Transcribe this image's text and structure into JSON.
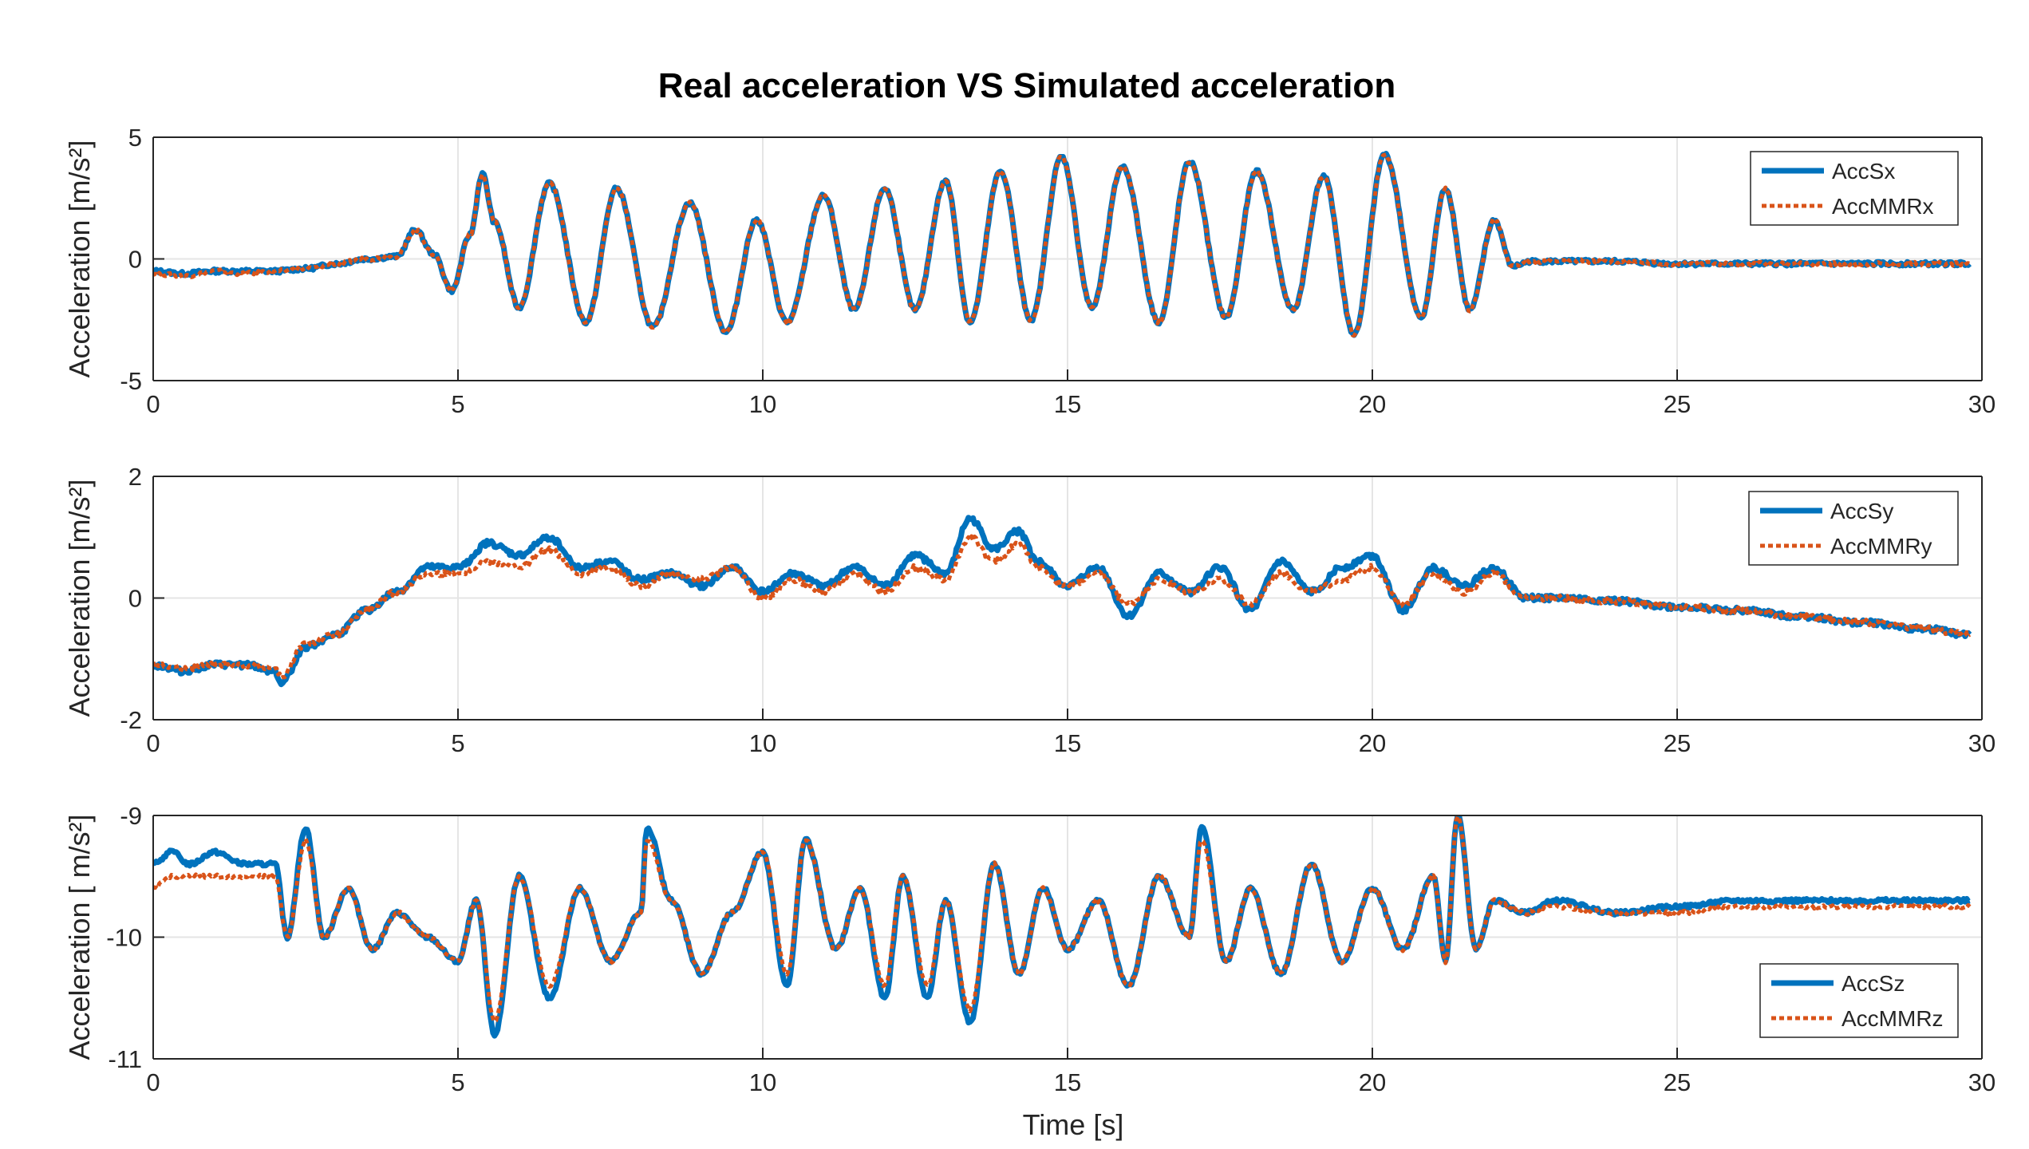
{
  "title": "Real acceleration VS Simulated acceleration",
  "xlabel": "Time [s]",
  "colors": {
    "measured": "#0072BD",
    "simulated": "#D95319",
    "grid": "#e5e5e5",
    "axis": "#262626"
  },
  "chart_data": [
    {
      "type": "line",
      "ylabel": "Acceleration [m/s²]",
      "xlim": [
        0,
        30
      ],
      "ylim": [
        -5,
        5
      ],
      "xticks": [
        0,
        5,
        10,
        15,
        20,
        25,
        30
      ],
      "yticks": [
        -5,
        0,
        5
      ],
      "legend_position": "top-right",
      "series": [
        {
          "name": "AccSx",
          "style": "solid",
          "x": [
            0,
            0.5,
            1,
            1.5,
            2,
            2.5,
            3,
            3.5,
            4,
            4.3,
            4.6,
            4.9,
            5.2,
            5.4,
            5.6,
            6.0,
            6.5,
            7.1,
            7.6,
            8.2,
            8.8,
            9.4,
            9.9,
            10.4,
            11.0,
            11.5,
            12.0,
            12.5,
            13.0,
            13.4,
            13.9,
            14.4,
            14.9,
            15.4,
            15.9,
            16.5,
            17.0,
            17.6,
            18.1,
            18.7,
            19.2,
            19.7,
            20.2,
            20.8,
            21.2,
            21.6,
            22.0,
            22.3,
            22.6,
            23,
            24,
            25,
            26,
            27,
            28,
            29,
            29.8
          ],
          "y": [
            -0.5,
            -0.6,
            -0.5,
            -0.5,
            -0.5,
            -0.4,
            -0.2,
            0.0,
            0.1,
            1.2,
            0.2,
            -1.3,
            1.0,
            3.5,
            1.5,
            -2.0,
            3.1,
            -2.6,
            2.9,
            -2.8,
            2.3,
            -3.0,
            1.6,
            -2.6,
            2.6,
            -2.1,
            2.9,
            -2.1,
            3.2,
            -2.6,
            3.6,
            -2.5,
            4.2,
            -2.0,
            3.8,
            -2.6,
            4.0,
            -2.4,
            3.6,
            -2.1,
            3.4,
            -3.1,
            4.3,
            -2.4,
            2.9,
            -2.1,
            1.6,
            -0.3,
            -0.1,
            -0.1,
            -0.1,
            -0.2,
            -0.2,
            -0.2,
            -0.2,
            -0.2,
            -0.2
          ]
        },
        {
          "name": "AccMMRx",
          "style": "dotted",
          "x": [
            0,
            0.5,
            1,
            1.5,
            2,
            2.5,
            3,
            3.5,
            4,
            4.3,
            4.6,
            4.9,
            5.2,
            5.4,
            5.6,
            6.0,
            6.5,
            7.1,
            7.6,
            8.2,
            8.8,
            9.4,
            9.9,
            10.4,
            11.0,
            11.5,
            12.0,
            12.5,
            13.0,
            13.4,
            13.9,
            14.4,
            14.9,
            15.4,
            15.9,
            16.5,
            17.0,
            17.6,
            18.1,
            18.7,
            19.2,
            19.7,
            20.2,
            20.8,
            21.2,
            21.6,
            22.0,
            22.3,
            22.6,
            23,
            24,
            25,
            26,
            27,
            28,
            29,
            29.8
          ],
          "y": [
            -0.6,
            -0.7,
            -0.5,
            -0.6,
            -0.5,
            -0.4,
            -0.2,
            0.0,
            0.1,
            1.2,
            0.2,
            -1.3,
            1.0,
            3.5,
            1.5,
            -2.0,
            3.1,
            -2.6,
            2.9,
            -2.8,
            2.3,
            -3.0,
            1.6,
            -2.6,
            2.6,
            -2.1,
            2.9,
            -2.1,
            3.2,
            -2.6,
            3.6,
            -2.5,
            4.2,
            -2.0,
            3.8,
            -2.6,
            4.0,
            -2.4,
            3.6,
            -2.1,
            3.4,
            -3.1,
            4.3,
            -2.4,
            2.9,
            -2.1,
            1.6,
            -0.3,
            -0.1,
            -0.1,
            -0.1,
            -0.2,
            -0.2,
            -0.2,
            -0.2,
            -0.2,
            -0.2
          ]
        }
      ]
    },
    {
      "type": "line",
      "ylabel": "Acceleration [m/s²]",
      "xlim": [
        0,
        30
      ],
      "ylim": [
        -2,
        2
      ],
      "xticks": [
        0,
        5,
        10,
        15,
        20,
        25,
        30
      ],
      "yticks": [
        -2,
        0,
        2
      ],
      "legend_position": "top-right",
      "series": [
        {
          "name": "AccSy",
          "style": "solid",
          "x": [
            0,
            0.5,
            1,
            1.5,
            2,
            2.1,
            2.5,
            3,
            3.5,
            4,
            4.5,
            5,
            5.5,
            6,
            6.5,
            7,
            7.5,
            8,
            8.5,
            9,
            9.5,
            10,
            10.5,
            11,
            11.5,
            12,
            12.5,
            13,
            13.4,
            13.8,
            14.2,
            14.5,
            15,
            15.5,
            16,
            16.5,
            17,
            17.5,
            18,
            18.5,
            19,
            19.5,
            20,
            20.5,
            21,
            21.5,
            22,
            22.5,
            23,
            24,
            25,
            26,
            27,
            28,
            29,
            29.8
          ],
          "y": [
            -1.1,
            -1.2,
            -1.1,
            -1.1,
            -1.2,
            -1.4,
            -0.8,
            -0.6,
            -0.2,
            0.1,
            0.5,
            0.5,
            0.9,
            0.7,
            1.0,
            0.5,
            0.6,
            0.3,
            0.4,
            0.2,
            0.5,
            0.1,
            0.4,
            0.2,
            0.5,
            0.2,
            0.7,
            0.4,
            1.3,
            0.8,
            1.1,
            0.6,
            0.2,
            0.5,
            -0.3,
            0.4,
            0.1,
            0.5,
            -0.2,
            0.6,
            0.1,
            0.5,
            0.7,
            -0.2,
            0.5,
            0.2,
            0.5,
            0.0,
            0.0,
            -0.05,
            -0.15,
            -0.2,
            -0.3,
            -0.4,
            -0.5,
            -0.6
          ]
        },
        {
          "name": "AccMMRy",
          "style": "dotted",
          "x": [
            0,
            0.5,
            1,
            1.5,
            2,
            2.1,
            2.5,
            3,
            3.5,
            4,
            4.5,
            5,
            5.5,
            6,
            6.5,
            7,
            7.5,
            8,
            8.5,
            9,
            9.5,
            10,
            10.5,
            11,
            11.5,
            12,
            12.5,
            13,
            13.4,
            13.8,
            14.2,
            14.5,
            15,
            15.5,
            16,
            16.5,
            17,
            17.5,
            18,
            18.5,
            19,
            19.5,
            20,
            20.5,
            21,
            21.5,
            22,
            22.5,
            23,
            24,
            25,
            26,
            27,
            28,
            29,
            29.8
          ],
          "y": [
            -1.1,
            -1.15,
            -1.1,
            -1.1,
            -1.15,
            -1.3,
            -0.75,
            -0.6,
            -0.2,
            0.1,
            0.4,
            0.4,
            0.6,
            0.5,
            0.8,
            0.4,
            0.5,
            0.2,
            0.4,
            0.3,
            0.5,
            0.0,
            0.3,
            0.1,
            0.4,
            0.1,
            0.5,
            0.3,
            1.0,
            0.6,
            0.9,
            0.5,
            0.2,
            0.4,
            -0.1,
            0.3,
            0.1,
            0.3,
            -0.1,
            0.4,
            0.1,
            0.3,
            0.5,
            -0.1,
            0.4,
            0.1,
            0.4,
            0.0,
            0.0,
            -0.05,
            -0.15,
            -0.2,
            -0.3,
            -0.4,
            -0.5,
            -0.6
          ]
        }
      ]
    },
    {
      "type": "line",
      "ylabel": "Acceleration [ m/s²]",
      "xlim": [
        0,
        30
      ],
      "ylim": [
        -11,
        -9
      ],
      "xticks": [
        0,
        5,
        10,
        15,
        20,
        25,
        30
      ],
      "yticks": [
        -11,
        -10,
        -9
      ],
      "legend_position": "bottom-right",
      "series": [
        {
          "name": "AccSz",
          "style": "solid",
          "x": [
            0,
            0.3,
            0.6,
            1,
            1.5,
            2,
            2.2,
            2.5,
            2.8,
            3.2,
            3.6,
            4,
            4.5,
            5,
            5.3,
            5.6,
            6,
            6.5,
            7,
            7.5,
            8,
            8.1,
            8.5,
            9,
            9.5,
            10,
            10.4,
            10.7,
            11.2,
            11.6,
            12,
            12.3,
            12.7,
            13,
            13.4,
            13.8,
            14.2,
            14.6,
            15,
            15.5,
            16,
            16.5,
            17,
            17.2,
            17.6,
            18,
            18.5,
            19,
            19.5,
            20,
            20.5,
            21,
            21.2,
            21.4,
            21.7,
            22,
            22.5,
            23,
            24,
            25,
            26,
            27,
            28,
            29,
            29.8
          ],
          "y": [
            -9.4,
            -9.3,
            -9.4,
            -9.3,
            -9.4,
            -9.4,
            -10.0,
            -9.1,
            -10.0,
            -9.6,
            -10.1,
            -9.8,
            -10.0,
            -10.2,
            -9.7,
            -10.8,
            -9.5,
            -10.5,
            -9.6,
            -10.2,
            -9.8,
            -9.1,
            -9.7,
            -10.3,
            -9.8,
            -9.3,
            -10.4,
            -9.2,
            -10.1,
            -9.6,
            -10.5,
            -9.5,
            -10.5,
            -9.7,
            -10.7,
            -9.4,
            -10.3,
            -9.6,
            -10.1,
            -9.7,
            -10.4,
            -9.5,
            -10.0,
            -9.1,
            -10.2,
            -9.6,
            -10.3,
            -9.4,
            -10.2,
            -9.6,
            -10.1,
            -9.5,
            -10.2,
            -9.0,
            -10.1,
            -9.7,
            -9.8,
            -9.7,
            -9.8,
            -9.75,
            -9.7,
            -9.7,
            -9.7,
            -9.7,
            -9.7
          ]
        },
        {
          "name": "AccMMRz",
          "style": "dotted",
          "x": [
            0,
            0.3,
            0.6,
            1,
            1.5,
            2,
            2.2,
            2.5,
            2.8,
            3.2,
            3.6,
            4,
            4.5,
            5,
            5.3,
            5.6,
            6,
            6.5,
            7,
            7.5,
            8,
            8.1,
            8.5,
            9,
            9.5,
            10,
            10.4,
            10.7,
            11.2,
            11.6,
            12,
            12.3,
            12.7,
            13,
            13.4,
            13.8,
            14.2,
            14.6,
            15,
            15.5,
            16,
            16.5,
            17,
            17.2,
            17.6,
            18,
            18.5,
            19,
            19.5,
            20,
            20.5,
            21,
            21.2,
            21.4,
            21.7,
            22,
            22.5,
            23,
            24,
            25,
            26,
            27,
            28,
            29,
            29.8
          ],
          "y": [
            -9.6,
            -9.5,
            -9.5,
            -9.5,
            -9.5,
            -9.5,
            -10.0,
            -9.2,
            -10.0,
            -9.6,
            -10.1,
            -9.8,
            -10.0,
            -10.2,
            -9.7,
            -10.7,
            -9.5,
            -10.4,
            -9.6,
            -10.2,
            -9.8,
            -9.2,
            -9.7,
            -10.3,
            -9.8,
            -9.3,
            -10.3,
            -9.2,
            -10.1,
            -9.6,
            -10.4,
            -9.5,
            -10.4,
            -9.7,
            -10.6,
            -9.4,
            -10.3,
            -9.6,
            -10.1,
            -9.7,
            -10.4,
            -9.5,
            -10.0,
            -9.2,
            -10.2,
            -9.6,
            -10.3,
            -9.4,
            -10.2,
            -9.6,
            -10.1,
            -9.5,
            -10.2,
            -9.0,
            -10.1,
            -9.7,
            -9.8,
            -9.75,
            -9.8,
            -9.8,
            -9.75,
            -9.75,
            -9.75,
            -9.75,
            -9.75
          ]
        }
      ]
    }
  ]
}
